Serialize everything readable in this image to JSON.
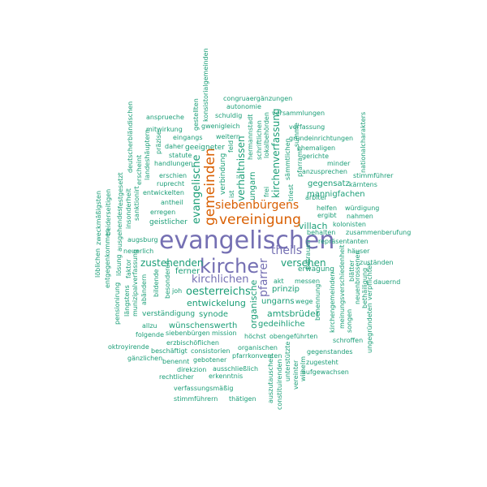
{
  "colors": {
    "small": "#1b9e77",
    "medium": "#d95f02",
    "large": "#7570b3"
  },
  "words": {
    "evangelischen": "evangelischen",
    "kirche": "kirche",
    "gemeinden": "gemeinden",
    "vereinigung": "vereinigung",
    "siebenbuergens": "siebenbürgens",
    "evangelische": "evangelische",
    "theils": "theils",
    "kirchlichen": "kirchlichen",
    "oesterreichs": "oesterreichs",
    "pfarrer": "pfarrer",
    "entwickelung": "entwickelung",
    "zustehenden": "zustehenden",
    "versehen": "versehen",
    "verhaeltnissen": "verhältnissen",
    "kirchenverfassung": "kirchenverfassung",
    "gegensatz": "gegensatz",
    "mannigfachen": "mannigfachen",
    "villach": "villach",
    "organische": "organische",
    "prinzip": "prinzip",
    "amtsbrueder": "amtsbrüder",
    "ungarns": "ungarns",
    "gedeihliche": "gedeihliche",
    "wuenschenswerth": "wünschenswerth",
    "synode": "synode",
    "ferner": "ferner",
    "geistlicher": "geistlicher",
    "erwaegung": "erwägung",
    "ungarn": "ungarn",
    "verbindung": "verbindung",
    "geeigneter": "geeigneter",
    "congruaergaenzungen": "congruaergänzungen",
    "autonomie": "autonomie",
    "schuldig": "schuldig",
    "versammlungen": "versammlungen",
    "verfassung": "verfassung",
    "grundeinrichtungen": "grundeinrichtungen",
    "ehemaligen": "ehemaligen",
    "gerichte": "gerichte",
    "minder": "minder",
    "anzusprechen": "anzusprechen",
    "stimmfuehrer": "stimmführer",
    "kaerntens": "kärntens",
    "ansprueche": "ansprueche",
    "gwenigleich": "gwenigleich",
    "mitwirkung": "mitwirkung",
    "eingangs": "eingangs",
    "weitern": "weitern",
    "daher": "daher",
    "statute": "statute",
    "handlungen": "handlungen",
    "erschien": "erschien",
    "ruprecht": "ruprecht",
    "entwickelten": "entwickelten",
    "antheil": "antheil",
    "erregen": "erregen",
    "arbiter": "arbiter",
    "helfen": "helfen",
    "wuerdigung": "würdigung",
    "ergibt": "ergibt",
    "nahmen": "nahmen",
    "kolonisten": "kolonisten",
    "behalten": "behalten",
    "zusammenberufung": "zusammenberufung",
    "repraesentanten": "repräsentanten",
    "haeuser": "häuser",
    "augsburg": "augsburg",
    "neuerlich": "neuerlich",
    "zustaenden": "zuständen",
    "dauernd": "dauernd",
    "messen": "messen",
    "akt": "akt",
    "wege": "wege",
    "joh": "joh",
    "verstaendigung": "verständigung",
    "allzu": "allzu",
    "siebenbuergen": "siebenbürgen",
    "mission": "mission",
    "folgende": "folgende",
    "hoechst": "höchst",
    "obengefuehrten": "obengeführten",
    "erzbischoeflichen": "erzbischöflichen",
    "oktroyirende": "oktroyirende",
    "beschaeftigt": "beschäftigt",
    "consistorien": "consistorien",
    "organischen": "organischen",
    "gegenstandes": "gegenstandes",
    "gaenzlichen": "gänzlichen",
    "pfarrkonventen": "pfarrkonventen",
    "benennt": "benennt",
    "gebotener": "gebotener",
    "rechtlicher": "rechtlicher",
    "direkzion": "direkzion",
    "ausschliesslich": "ausschließlich",
    "zugesteht": "zugesteht",
    "erkenntnis": "erkenntnis",
    "aufgewachsen": "aufgewachsen",
    "verfassungsmaessig": "verfassungsmäßig",
    "stimmfuehrern": "stimmführern",
    "thaetigen": "thätigen",
    "schroffen": "schroffen",
    "konsistorialgemeinden": "konsistorialgemeinden",
    "gestellten": "gestellten",
    "hermannstadt": "hermannstadt",
    "schriftlichen": "schriftlichen",
    "lokalbehoerden": "lokalbehörden",
    "saemmtlichen": "sämmtlichen",
    "summe": "summe",
    "pfarramt": "pfarramt",
    "frei": "frei",
    "beherrschen": "beherrschen",
    "nationalcharakters": "nationalcharakters",
    "deutscherblaendischen": "deutscherbländischen",
    "praezise": "präzise",
    "feld": "feld",
    "ist": "ist",
    "landeshaeuptern": "landeshäuptern",
    "erscheint": "erscheint",
    "festgesetzt": "festgesetzt",
    "insonderheit": "insonderheit",
    "sanktionirt": "sanktionirt",
    "zweckmaessigsten": "zweckmäßigsten",
    "beiderseitigen": "beiderseitigen",
    "ausgehendes": "ausgehendes",
    "loeblichen": "löblichen",
    "entgegenkommen": "entgegenkommen",
    "loesung": "lösung",
    "faktor": "faktor",
    "landeskirchen": "landeskirchen",
    "pensionirung": "pensionirung",
    "laengstens": "längstens",
    "munizipalverfassung": "munizipalverfassung",
    "abaendern": "abändern",
    "dekan": "dekan",
    "bildende": "bildende",
    "besonderen": "besonderen",
    "betrauen": "betrauen",
    "benennung": "benennung",
    "kirchengemeinden": "kirchengemeinden",
    "meinungsverschiedenheit": "meinungsverschiedenheit",
    "songen": "songen",
    "neuenbrossenen": "neuenbrossenen",
    "bisherigen": "bisherigen",
    "bethaeiligung": "bethäiligung",
    "blaetter": "blätter",
    "verpflichtet": "verpflichtet",
    "ungegruendeten": "ungegründeten",
    "auszutauschen": "auszutauschen",
    "constituirenden": "constituirenden",
    "unterstuetzte": "unterstützte",
    "vereinter": "vereinter",
    "wilhelm": "wilhelm",
    "wilh": "wilh",
    "triest": "triest",
    "kirchenzugehoerigkeit": "kirchenzugehörigkeit"
  }
}
